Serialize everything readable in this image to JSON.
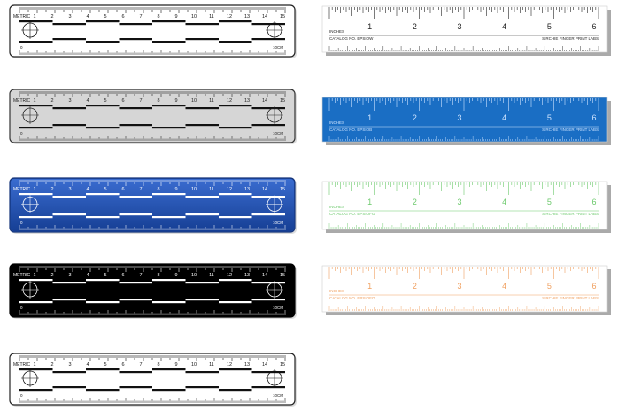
{
  "metric_rulers": [
    {
      "id": "white",
      "label": "METRIC",
      "cm_unit": "10CM",
      "numbers": [
        "1",
        "2",
        "3",
        "4",
        "5",
        "6",
        "7",
        "8",
        "9",
        "10",
        "11",
        "12",
        "13",
        "14",
        "15"
      ],
      "bottom_numbers": [
        "0",
        "",
        "",
        "",
        "",
        "",
        "",
        "",
        "",
        "",
        "",
        "",
        ""
      ],
      "colors": {
        "bg": "#ffffff",
        "fg": "#111111",
        "band": "#111111",
        "border": "#222222"
      }
    },
    {
      "id": "gray",
      "label": "METRIC",
      "cm_unit": "10CM",
      "numbers": [
        "1",
        "2",
        "3",
        "4",
        "5",
        "6",
        "7",
        "8",
        "9",
        "10",
        "11",
        "12",
        "13",
        "14",
        "15"
      ],
      "bottom_numbers": [
        "0",
        "",
        "",
        "",
        "",
        "",
        "",
        "",
        "",
        "",
        "",
        "",
        ""
      ],
      "colors": {
        "bg": "#d6d6d6",
        "fg": "#222222",
        "band": "#111111",
        "border": "#333333"
      }
    },
    {
      "id": "blue",
      "label": "METRIC",
      "cm_unit": "10CM",
      "numbers": [
        "1",
        "2",
        "3",
        "4",
        "5",
        "6",
        "7",
        "8",
        "9",
        "10",
        "11",
        "12",
        "13",
        "14",
        "15"
      ],
      "bottom_numbers": [
        "0",
        "",
        "",
        "",
        "",
        "",
        "",
        "",
        "",
        "",
        "",
        "",
        ""
      ],
      "colors": {
        "bg": "#1f4fae",
        "fg": "#ffffff",
        "band": "#ffffff",
        "border": "#16357a"
      }
    },
    {
      "id": "black",
      "label": "METRIC",
      "cm_unit": "10CM",
      "numbers": [
        "1",
        "2",
        "3",
        "4",
        "5",
        "6",
        "7",
        "8",
        "9",
        "10",
        "11",
        "12",
        "13",
        "14",
        "15"
      ],
      "bottom_numbers": [
        "0",
        "",
        "",
        "",
        "",
        "",
        "",
        "",
        "",
        "",
        "",
        "",
        ""
      ],
      "colors": {
        "bg": "#000000",
        "fg": "#ffffff",
        "band": "#ffffff",
        "border": "#000000"
      }
    },
    {
      "id": "clear",
      "label": "METRIC",
      "cm_unit": "10CM",
      "numbers": [
        "1",
        "2",
        "3",
        "4",
        "5",
        "6",
        "7",
        "8",
        "9",
        "10",
        "11",
        "12",
        "13",
        "14",
        "15"
      ],
      "bottom_numbers": [
        "0",
        "",
        "",
        "",
        "",
        "",
        "",
        "",
        "",
        "",
        "",
        "",
        ""
      ],
      "colors": {
        "bg": "#ffffff",
        "fg": "#111111",
        "band": "#111111",
        "border": "#222222"
      }
    }
  ],
  "inch_rulers": [
    {
      "id": "white",
      "label": "INCHES",
      "numbers": [
        "1",
        "2",
        "3",
        "4",
        "5",
        "6"
      ],
      "catalog": "CATALOG NO. EPSIOW",
      "brand": "SIRCHIE FINGER PRINT LABS",
      "colors": {
        "bg": "#ffffff",
        "fg": "#222222"
      }
    },
    {
      "id": "blue",
      "label": "INCHES",
      "numbers": [
        "1",
        "2",
        "3",
        "4",
        "5",
        "6"
      ],
      "catalog": "CATALOG NO. EPSIOB",
      "brand": "SIRCHIE FINGER PRINT LABS",
      "colors": {
        "bg": "#1a6ec4",
        "fg": "#cfe4ff"
      }
    },
    {
      "id": "green",
      "label": "INCHES",
      "numbers": [
        "1",
        "2",
        "3",
        "4",
        "5",
        "6"
      ],
      "catalog": "CATALOG NO. EPSIOFG",
      "brand": "SIRCHIE FINGER PRINT LABS",
      "colors": {
        "bg": "#ffffff",
        "fg": "#6cc96c"
      }
    },
    {
      "id": "orange",
      "label": "INCHES",
      "numbers": [
        "1",
        "2",
        "3",
        "4",
        "5",
        "6"
      ],
      "catalog": "CATALOG NO. EPSIOFO",
      "brand": "SIRCHIE FINGER PRINT LABS",
      "colors": {
        "bg": "#ffffff",
        "fg": "#f0a060"
      }
    }
  ]
}
